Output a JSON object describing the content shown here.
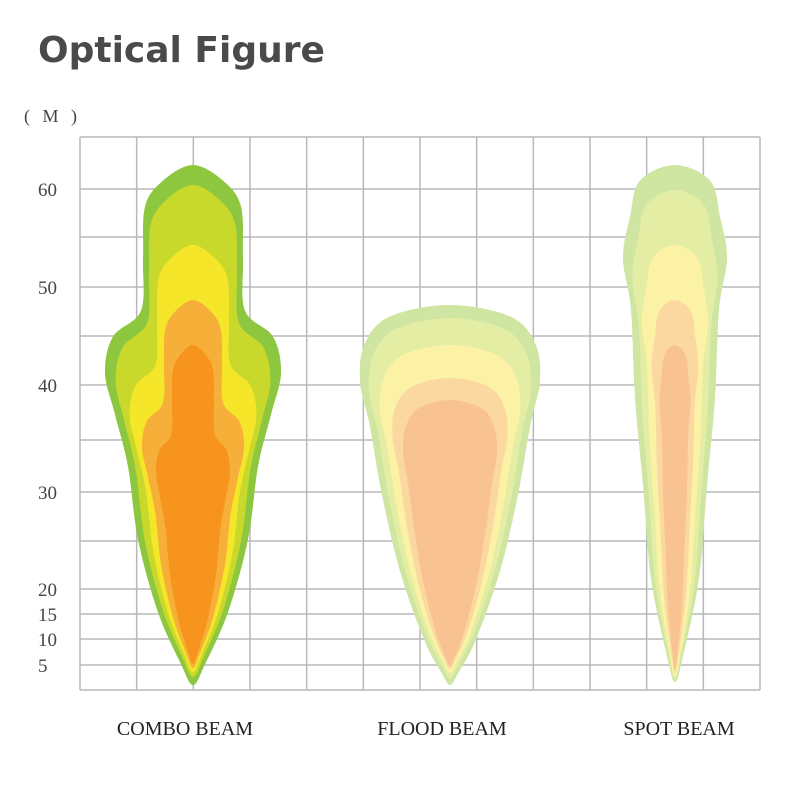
{
  "header": {
    "title": "Optical Figure",
    "unit": "( M )"
  },
  "axis": {
    "ticks": [
      60,
      50,
      40,
      30,
      20,
      15,
      10,
      5
    ]
  },
  "beams": [
    {
      "label": "COMBO BEAM"
    },
    {
      "label": "FLOOD BEAM"
    },
    {
      "label": "SPOT BEAM"
    }
  ]
}
